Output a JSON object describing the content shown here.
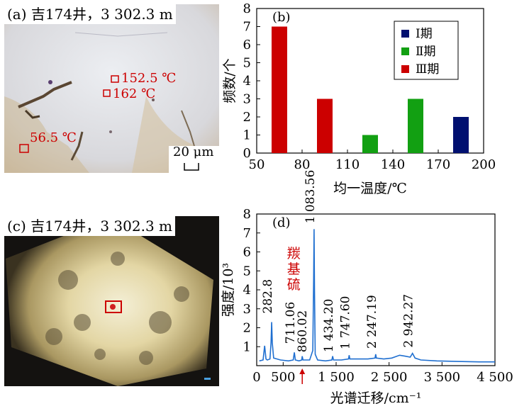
{
  "panel_a": {
    "label": "(a) 吉174井，3 302.3 m",
    "annotations": [
      "152.5 ℃",
      "162 ℃",
      "56.5 ℃"
    ],
    "scale_bar": "20 μm"
  },
  "panel_c": {
    "label": "(c) 吉174井，3 302.3 m"
  },
  "colors": {
    "red": "#cc0000",
    "green": "#12a012",
    "navy": "#001070",
    "blue_line": "#1f6fd0"
  },
  "chart_data": [
    {
      "type": "bar",
      "panel_label": "(b)",
      "xlabel": "均一温度/℃",
      "ylabel": "频数/个",
      "xticks": [
        50,
        80,
        110,
        140,
        170,
        200
      ],
      "yticks": [
        0,
        1,
        2,
        3,
        4,
        5,
        6,
        7,
        8
      ],
      "xlim": [
        50,
        200
      ],
      "ylim": [
        0,
        8
      ],
      "bars": [
        {
          "x": 65,
          "value": 7,
          "series": "Ⅲ期"
        },
        {
          "x": 95,
          "value": 3,
          "series": "Ⅲ期"
        },
        {
          "x": 125,
          "value": 1,
          "series": "Ⅱ期"
        },
        {
          "x": 155,
          "value": 3,
          "series": "Ⅱ期"
        },
        {
          "x": 185,
          "value": 2,
          "series": "Ⅰ期"
        }
      ],
      "series": [
        {
          "name": "Ⅰ期",
          "color": "#001070"
        },
        {
          "name": "Ⅱ期",
          "color": "#12a012"
        },
        {
          "name": "Ⅲ期",
          "color": "#cc0000"
        }
      ],
      "legend": "top-right"
    },
    {
      "type": "line",
      "panel_label": "(d)",
      "xlabel": "光谱迁移/cm⁻¹",
      "ylabel": "强度/10³",
      "xticks": [
        0,
        500,
        1500,
        2500,
        3500,
        4500
      ],
      "xtick_labels": [
        "0",
        "500",
        "1 500",
        "2 500",
        "3 500",
        "4 500"
      ],
      "yticks": [
        1,
        2,
        3,
        4,
        5,
        6,
        7,
        8
      ],
      "xlim": [
        0,
        4500
      ],
      "ylim": [
        0,
        8
      ],
      "series": [
        {
          "color": "#1f6fd0",
          "points": [
            [
              50,
              0.25
            ],
            [
              120,
              0.3
            ],
            [
              150,
              1.05
            ],
            [
              175,
              0.35
            ],
            [
              200,
              0.3
            ],
            [
              250,
              0.35
            ],
            [
              270,
              1.2
            ],
            [
              283,
              2.3
            ],
            [
              295,
              1.2
            ],
            [
              320,
              0.4
            ],
            [
              450,
              0.3
            ],
            [
              600,
              0.25
            ],
            [
              690,
              0.3
            ],
            [
              711,
              0.7
            ],
            [
              730,
              0.3
            ],
            [
              800,
              0.25
            ],
            [
              850,
              0.3
            ],
            [
              860,
              0.5
            ],
            [
              875,
              0.3
            ],
            [
              1000,
              0.3
            ],
            [
              1060,
              0.8
            ],
            [
              1075,
              4.5
            ],
            [
              1083,
              7.2
            ],
            [
              1092,
              4.0
            ],
            [
              1105,
              0.6
            ],
            [
              1150,
              0.3
            ],
            [
              1300,
              0.25
            ],
            [
              1420,
              0.3
            ],
            [
              1434,
              0.5
            ],
            [
              1450,
              0.3
            ],
            [
              1600,
              0.3
            ],
            [
              1735,
              0.35
            ],
            [
              1747,
              0.55
            ],
            [
              1760,
              0.35
            ],
            [
              1900,
              0.35
            ],
            [
              2100,
              0.35
            ],
            [
              2235,
              0.4
            ],
            [
              2247,
              0.6
            ],
            [
              2260,
              0.4
            ],
            [
              2400,
              0.35
            ],
            [
              2550,
              0.4
            ],
            [
              2700,
              0.55
            ],
            [
              2800,
              0.5
            ],
            [
              2900,
              0.45
            ],
            [
              2942,
              0.65
            ],
            [
              2990,
              0.4
            ],
            [
              3100,
              0.3
            ],
            [
              3400,
              0.25
            ],
            [
              3800,
              0.22
            ],
            [
              4200,
              0.2
            ],
            [
              4500,
              0.2
            ]
          ]
        }
      ],
      "peak_labels": [
        {
          "x": 282.8,
          "text": "282.8"
        },
        {
          "x": 711.06,
          "text": "711.06"
        },
        {
          "x": 860.02,
          "text": "860.02"
        },
        {
          "x": 1083.56,
          "text": "1 083.56"
        },
        {
          "x": 1434.2,
          "text": "1 434.20"
        },
        {
          "x": 1747.6,
          "text": "1 747.60"
        },
        {
          "x": 2247.19,
          "text": "2 247.19"
        },
        {
          "x": 2942.27,
          "text": "2 942.27"
        }
      ],
      "annotation": {
        "text": "羰基硫",
        "x": 860.02
      }
    }
  ]
}
